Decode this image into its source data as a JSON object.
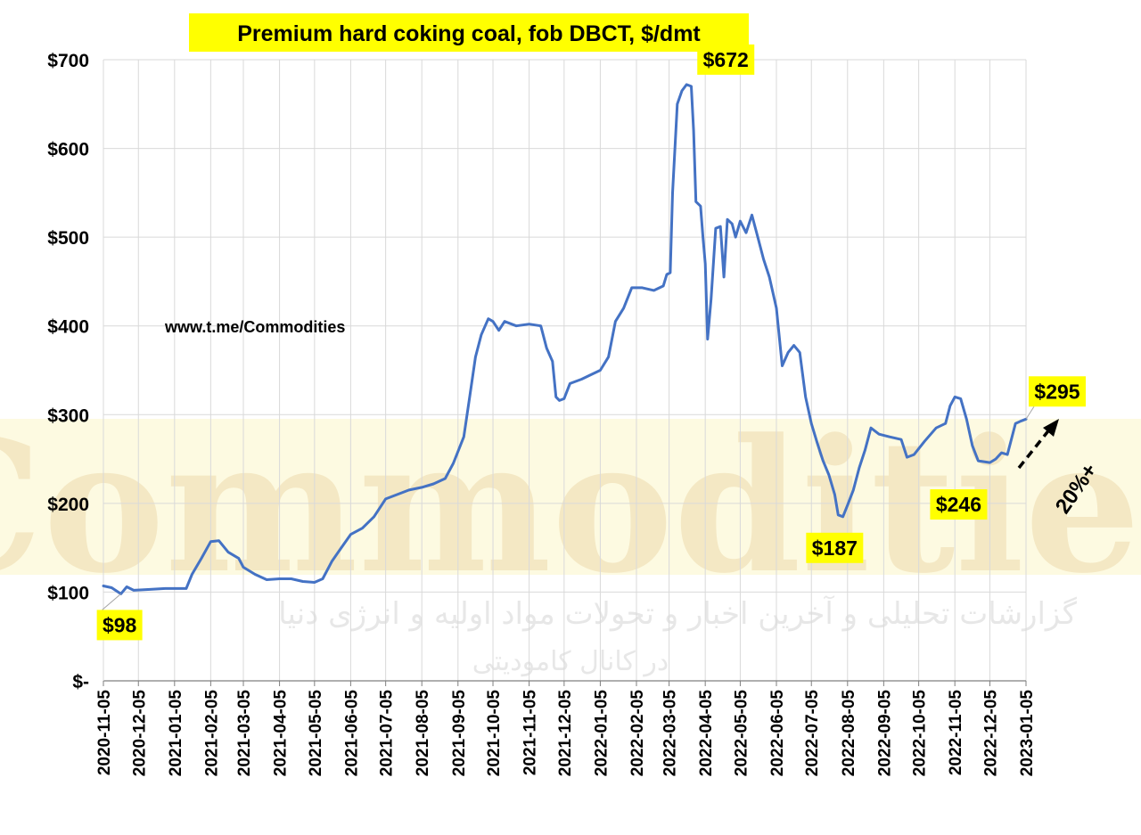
{
  "chart_data": {
    "type": "line",
    "title": "Premium hard coking coal, fob DBCT, $/dmt",
    "website": "www.t.me/Commodities",
    "y_tick_labels": [
      "$-",
      "$100",
      "$200",
      "$300",
      "$400",
      "$500",
      "$600",
      "$700"
    ],
    "ylim": [
      0,
      700
    ],
    "x_tick_labels": [
      "2020-11-05",
      "2020-12-05",
      "2021-01-05",
      "2021-02-05",
      "2021-03-05",
      "2021-04-05",
      "2021-05-05",
      "2021-06-05",
      "2021-07-05",
      "2021-08-05",
      "2021-09-05",
      "2021-10-05",
      "2021-11-05",
      "2021-12-05",
      "2022-01-05",
      "2022-02-05",
      "2022-03-05",
      "2022-04-05",
      "2022-05-05",
      "2022-06-05",
      "2022-07-05",
      "2022-08-05",
      "2022-09-05",
      "2022-10-05",
      "2022-11-05",
      "2022-12-05",
      "2023-01-05"
    ],
    "grid": true,
    "line_color": "#4472c4",
    "annotation_bg": "#ffff00",
    "series": [
      {
        "points": [
          [
            "2020-11-05",
            107
          ],
          [
            "2020-11-12",
            105
          ],
          [
            "2020-11-20",
            98
          ],
          [
            "2020-11-25",
            106
          ],
          [
            "2020-12-01",
            102
          ],
          [
            "2020-12-15",
            103
          ],
          [
            "2020-12-28",
            104
          ],
          [
            "2021-01-15",
            104
          ],
          [
            "2021-01-20",
            120
          ],
          [
            "2021-01-28",
            138
          ],
          [
            "2021-02-05",
            157
          ],
          [
            "2021-02-12",
            158
          ],
          [
            "2021-02-20",
            145
          ],
          [
            "2021-03-01",
            138
          ],
          [
            "2021-03-05",
            128
          ],
          [
            "2021-03-15",
            120
          ],
          [
            "2021-03-25",
            114
          ],
          [
            "2021-04-05",
            115
          ],
          [
            "2021-04-15",
            115
          ],
          [
            "2021-04-25",
            112
          ],
          [
            "2021-05-05",
            111
          ],
          [
            "2021-05-12",
            115
          ],
          [
            "2021-05-20",
            135
          ],
          [
            "2021-05-28",
            150
          ],
          [
            "2021-06-05",
            165
          ],
          [
            "2021-06-15",
            172
          ],
          [
            "2021-06-25",
            185
          ],
          [
            "2021-07-05",
            205
          ],
          [
            "2021-07-15",
            210
          ],
          [
            "2021-07-25",
            215
          ],
          [
            "2021-08-05",
            218
          ],
          [
            "2021-08-15",
            222
          ],
          [
            "2021-08-25",
            228
          ],
          [
            "2021-09-01",
            245
          ],
          [
            "2021-09-10",
            275
          ],
          [
            "2021-09-15",
            320
          ],
          [
            "2021-09-20",
            365
          ],
          [
            "2021-09-25",
            390
          ],
          [
            "2021-10-01",
            408
          ],
          [
            "2021-10-05",
            405
          ],
          [
            "2021-10-10",
            395
          ],
          [
            "2021-10-15",
            405
          ],
          [
            "2021-10-25",
            400
          ],
          [
            "2021-11-05",
            402
          ],
          [
            "2021-11-15",
            400
          ],
          [
            "2021-11-20",
            375
          ],
          [
            "2021-11-25",
            360
          ],
          [
            "2021-11-28",
            320
          ],
          [
            "2021-12-01",
            316
          ],
          [
            "2021-12-05",
            318
          ],
          [
            "2021-12-10",
            335
          ],
          [
            "2021-12-20",
            340
          ],
          [
            "2021-12-28",
            345
          ],
          [
            "2022-01-05",
            350
          ],
          [
            "2022-01-12",
            365
          ],
          [
            "2022-01-18",
            405
          ],
          [
            "2022-01-25",
            420
          ],
          [
            "2022-02-01",
            443
          ],
          [
            "2022-02-10",
            443
          ],
          [
            "2022-02-20",
            440
          ],
          [
            "2022-02-28",
            445
          ],
          [
            "2022-03-03",
            458
          ],
          [
            "2022-03-06",
            460
          ],
          [
            "2022-03-08",
            550
          ],
          [
            "2022-03-12",
            650
          ],
          [
            "2022-03-16",
            665
          ],
          [
            "2022-03-20",
            672
          ],
          [
            "2022-03-24",
            670
          ],
          [
            "2022-03-26",
            620
          ],
          [
            "2022-03-28",
            540
          ],
          [
            "2022-04-01",
            535
          ],
          [
            "2022-04-03",
            500
          ],
          [
            "2022-04-05",
            470
          ],
          [
            "2022-04-07",
            385
          ],
          [
            "2022-04-10",
            430
          ],
          [
            "2022-04-14",
            510
          ],
          [
            "2022-04-18",
            512
          ],
          [
            "2022-04-21",
            455
          ],
          [
            "2022-04-24",
            520
          ],
          [
            "2022-04-28",
            515
          ],
          [
            "2022-05-01",
            500
          ],
          [
            "2022-05-05",
            518
          ],
          [
            "2022-05-10",
            505
          ],
          [
            "2022-05-15",
            525
          ],
          [
            "2022-05-20",
            500
          ],
          [
            "2022-05-25",
            475
          ],
          [
            "2022-05-30",
            455
          ],
          [
            "2022-06-05",
            420
          ],
          [
            "2022-06-10",
            355
          ],
          [
            "2022-06-15",
            370
          ],
          [
            "2022-06-20",
            378
          ],
          [
            "2022-06-25",
            370
          ],
          [
            "2022-06-30",
            320
          ],
          [
            "2022-07-05",
            290
          ],
          [
            "2022-07-10",
            268
          ],
          [
            "2022-07-15",
            248
          ],
          [
            "2022-07-20",
            232
          ],
          [
            "2022-07-25",
            210
          ],
          [
            "2022-07-28",
            187
          ],
          [
            "2022-08-01",
            185
          ],
          [
            "2022-08-05",
            198
          ],
          [
            "2022-08-10",
            215
          ],
          [
            "2022-08-15",
            240
          ],
          [
            "2022-08-20",
            260
          ],
          [
            "2022-08-25",
            285
          ],
          [
            "2022-09-01",
            278
          ],
          [
            "2022-09-10",
            275
          ],
          [
            "2022-09-20",
            272
          ],
          [
            "2022-09-25",
            252
          ],
          [
            "2022-10-01",
            255
          ],
          [
            "2022-10-10",
            270
          ],
          [
            "2022-10-20",
            285
          ],
          [
            "2022-10-28",
            290
          ],
          [
            "2022-11-01",
            310
          ],
          [
            "2022-11-05",
            320
          ],
          [
            "2022-11-10",
            318
          ],
          [
            "2022-11-15",
            295
          ],
          [
            "2022-11-20",
            265
          ],
          [
            "2022-11-25",
            248
          ],
          [
            "2022-12-05",
            246
          ],
          [
            "2022-12-10",
            250
          ],
          [
            "2022-12-15",
            257
          ],
          [
            "2022-12-20",
            255
          ],
          [
            "2022-12-23",
            270
          ],
          [
            "2022-12-27",
            290
          ],
          [
            "2023-01-01",
            293
          ],
          [
            "2023-01-05",
            295
          ]
        ]
      }
    ],
    "annotations": [
      {
        "text": "$672",
        "x": "2022-03-20",
        "y": 672
      },
      {
        "text": "$98",
        "x": "2020-11-20",
        "y": 98
      },
      {
        "text": "$187",
        "x": "2022-07-28",
        "y": 187
      },
      {
        "text": "$246",
        "x": "2022-12-05",
        "y": 246
      },
      {
        "text": "$295",
        "x": "2023-01-05",
        "y": 295
      },
      {
        "text": "20%+"
      }
    ],
    "watermark": {
      "word": "Commodities",
      "persian_line_1": "گزارشات تحلیلی و آخرین اخبار و تحولات مواد اولیه و انرژی دنیا",
      "persian_line_2": "در کانال کامودیتی"
    }
  }
}
